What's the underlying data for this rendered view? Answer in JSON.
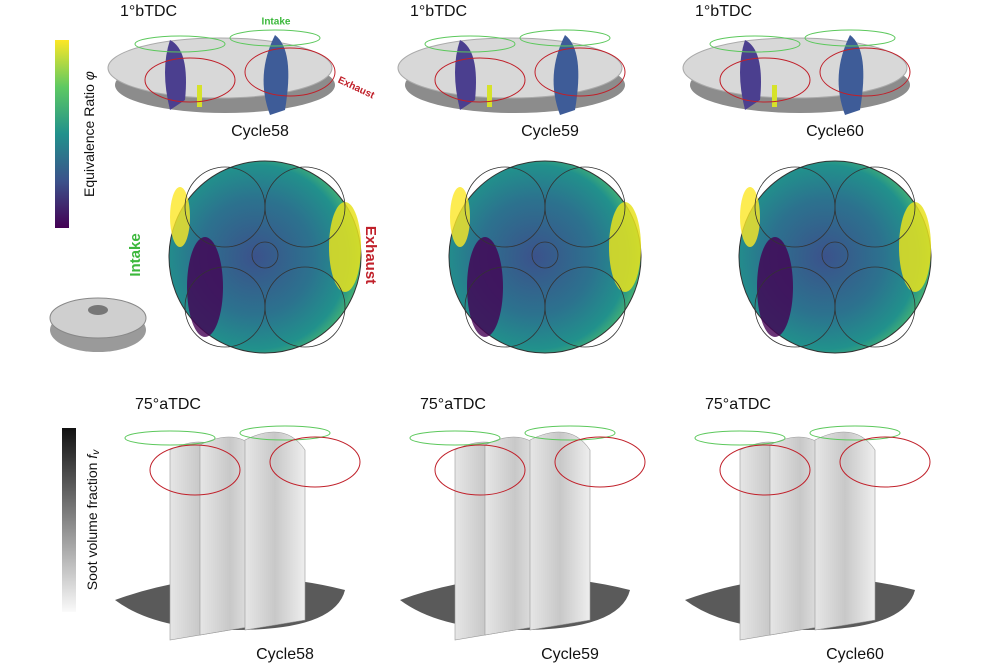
{
  "top_row": {
    "panels": [
      {
        "crank_angle": "1°bTDC",
        "cycle": "Cycle58"
      },
      {
        "crank_angle": "1°bTDC",
        "cycle": "Cycle59"
      },
      {
        "crank_angle": "1°bTDC",
        "cycle": "Cycle60"
      }
    ],
    "inset_labels": {
      "intake": "Intake",
      "exhaust": "Exhaust"
    }
  },
  "cross_section_labels": {
    "intake": "Intake",
    "exhaust": "Exhaust"
  },
  "bottom_row": {
    "panels": [
      {
        "crank_angle": "75°aTDC",
        "cycle": "Cycle58"
      },
      {
        "crank_angle": "75°aTDC",
        "cycle": "Cycle59"
      },
      {
        "crank_angle": "75°aTDC",
        "cycle": "Cycle60"
      }
    ]
  },
  "colorbars": {
    "equivalence_ratio": {
      "label": "Equivalence Ratio",
      "symbol": "φ"
    },
    "soot": {
      "label": "Soot volume fraction",
      "symbol": "f",
      "subscript": "v"
    }
  }
}
